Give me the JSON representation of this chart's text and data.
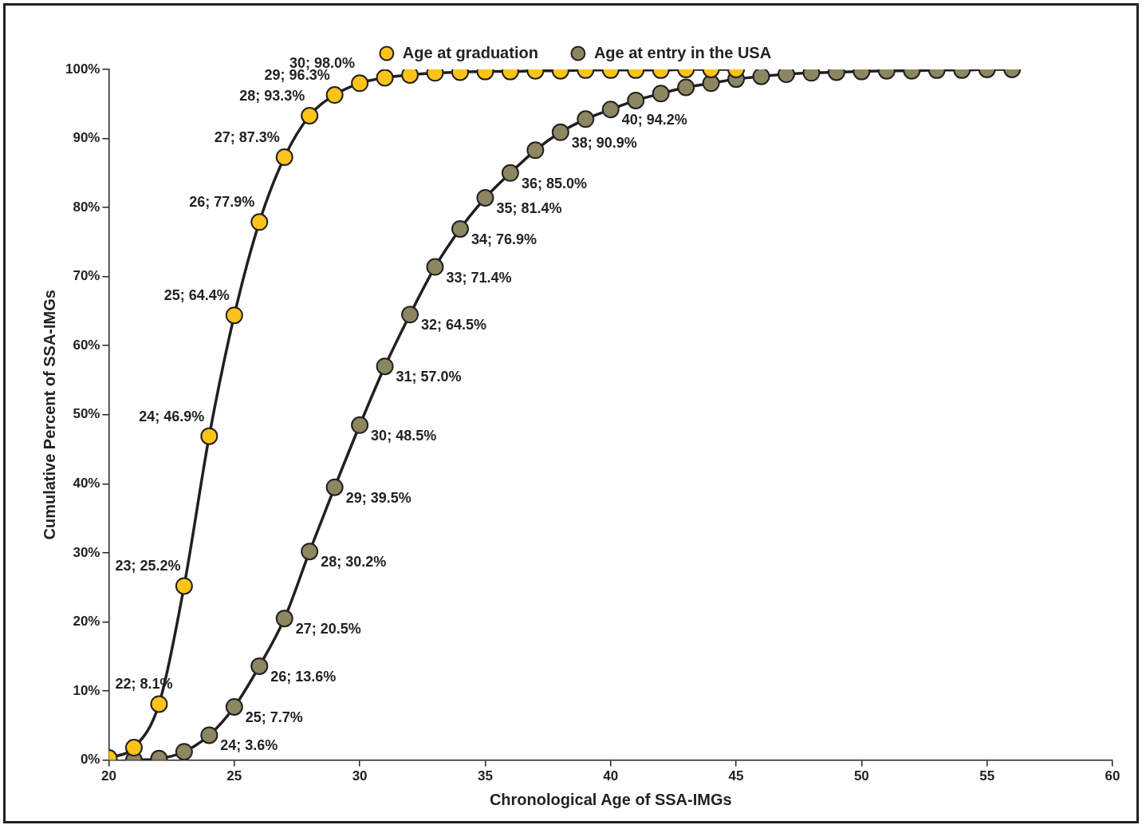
{
  "chart_data": {
    "type": "line",
    "xlabel": "Chronological Age of SSA-IMGs",
    "ylabel": "Cumulative Percent of SSA-IMGs",
    "xlim": [
      20,
      60
    ],
    "xticks": [
      20,
      25,
      30,
      35,
      40,
      45,
      50,
      55,
      60
    ],
    "ylim": [
      0,
      100
    ],
    "yticks": [
      {
        "value": 0,
        "label": "0%"
      },
      {
        "value": 10,
        "label": "10%"
      },
      {
        "value": 20,
        "label": "20%"
      },
      {
        "value": 30,
        "label": "30%"
      },
      {
        "value": 40,
        "label": "40%"
      },
      {
        "value": 50,
        "label": "50%"
      },
      {
        "value": 60,
        "label": "60%"
      },
      {
        "value": 70,
        "label": "70%"
      },
      {
        "value": 80,
        "label": "80%"
      },
      {
        "value": 90,
        "label": "90%"
      },
      {
        "value": 100,
        "label": "100%"
      }
    ],
    "grid": false,
    "legend": "top",
    "marker": "circle",
    "line_style": "solid",
    "series": [
      {
        "name": "Age at graduation",
        "color": "#fcc419",
        "x": [
          20,
          21,
          22,
          23,
          24,
          25,
          26,
          27,
          28,
          29,
          30,
          31,
          32,
          33,
          34,
          35,
          36,
          37,
          38,
          39,
          40,
          41,
          42,
          43,
          44,
          45
        ],
        "values": [
          0.3,
          1.8,
          8.1,
          25.2,
          46.9,
          64.4,
          77.9,
          87.3,
          93.3,
          96.3,
          98.0,
          98.8,
          99.2,
          99.5,
          99.6,
          99.7,
          99.7,
          99.8,
          99.8,
          99.9,
          99.9,
          99.9,
          99.9,
          100,
          100,
          100
        ],
        "value_labels": [
          null,
          null,
          "22; 8.1%",
          "23; 25.2%",
          "24; 46.9%",
          "25; 64.4%",
          "26; 77.9%",
          "27; 87.3%",
          "28; 93.3%",
          "29; 96.3%",
          "30; 98.0%",
          null,
          null,
          null,
          null,
          null,
          null,
          null,
          null,
          null,
          null,
          null,
          null,
          null,
          null,
          null
        ]
      },
      {
        "name": "Age at entry in the USA",
        "color": "#8c8760",
        "x": [
          21,
          22,
          23,
          24,
          25,
          26,
          27,
          28,
          29,
          30,
          31,
          32,
          33,
          34,
          35,
          36,
          37,
          38,
          39,
          40,
          41,
          42,
          43,
          44,
          45,
          46,
          47,
          48,
          49,
          50,
          51,
          52,
          53,
          54,
          55,
          56
        ],
        "values": [
          0,
          0.2,
          1.2,
          3.6,
          7.7,
          13.6,
          20.5,
          30.2,
          39.5,
          48.5,
          57.0,
          64.5,
          71.4,
          76.9,
          81.4,
          85.0,
          88.3,
          90.9,
          92.8,
          94.2,
          95.5,
          96.5,
          97.4,
          98.0,
          98.6,
          99.0,
          99.3,
          99.5,
          99.6,
          99.7,
          99.8,
          99.8,
          99.9,
          99.9,
          100,
          100
        ],
        "value_labels": [
          null,
          null,
          null,
          "24; 3.6%",
          "25; 7.7%",
          "26; 13.6%",
          "27; 20.5%",
          "28; 30.2%",
          "29; 39.5%",
          "30; 48.5%",
          "31; 57.0%",
          "32; 64.5%",
          "33; 71.4%",
          "34; 76.9%",
          "35; 81.4%",
          "36; 85.0%",
          null,
          "38; 90.9%",
          null,
          "40; 94.2%",
          null,
          null,
          null,
          null,
          null,
          null,
          null,
          null,
          null,
          null,
          null,
          null,
          null,
          null,
          null,
          null
        ]
      }
    ]
  }
}
